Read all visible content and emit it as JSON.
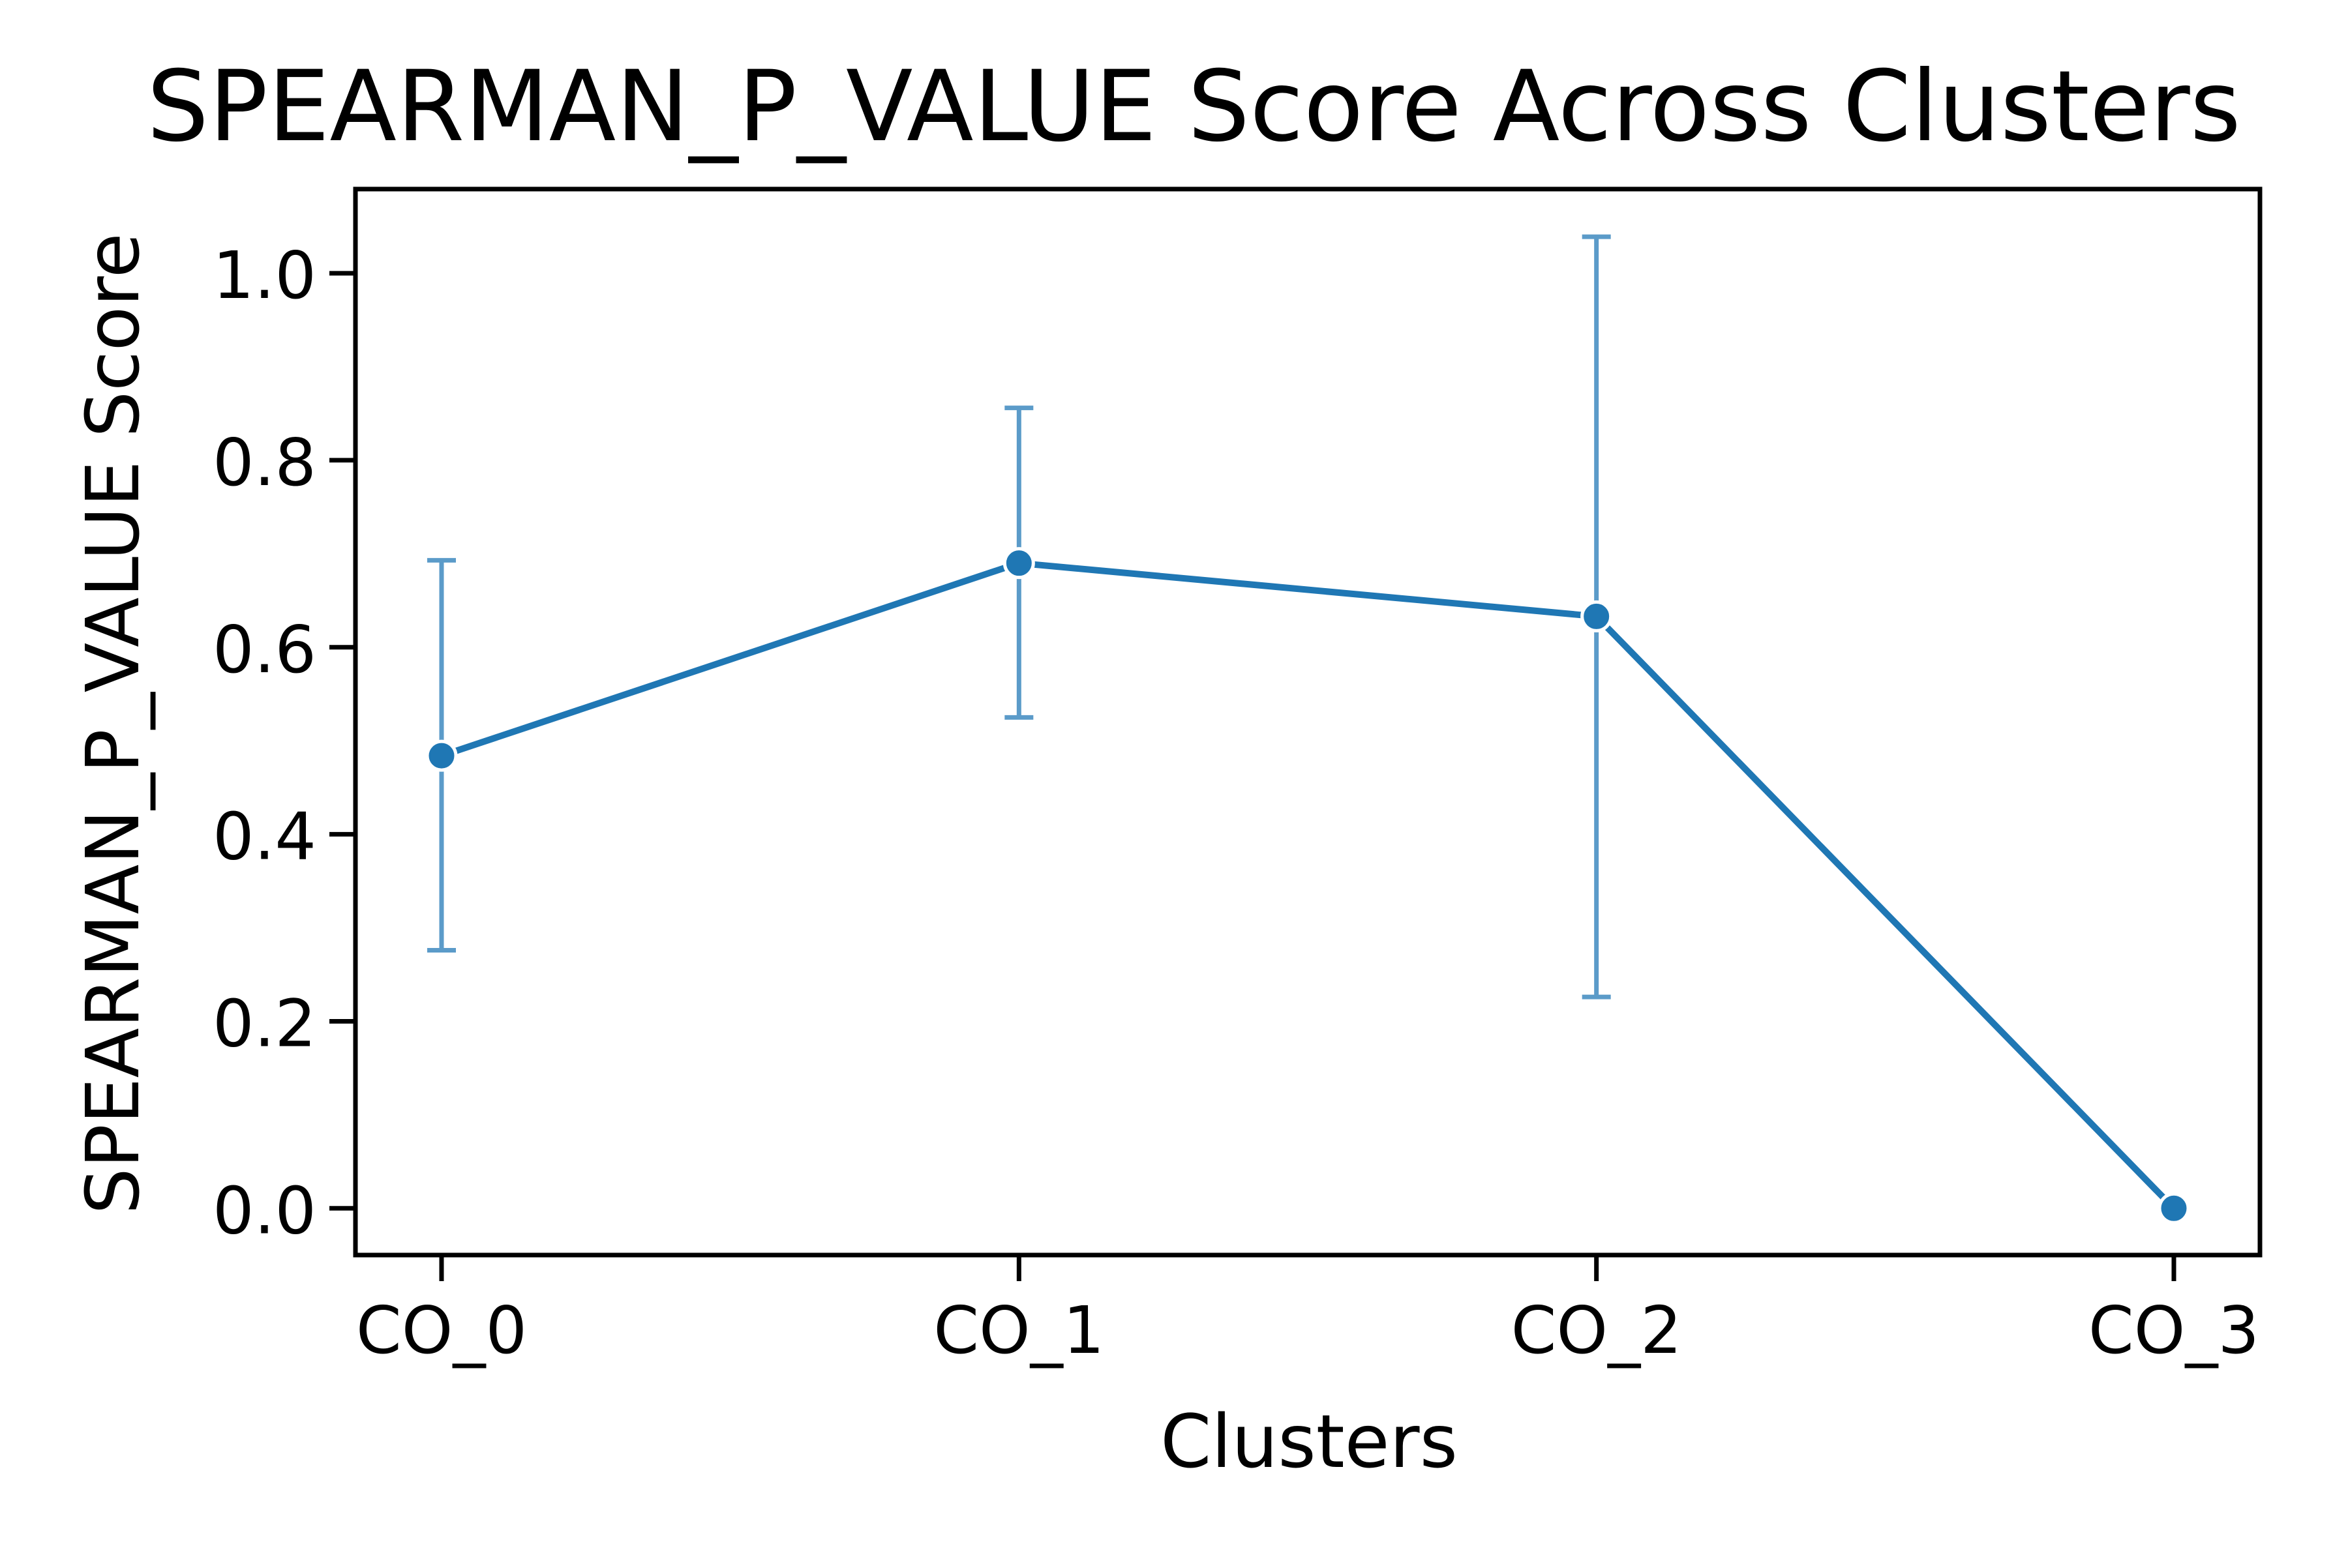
{
  "chart_data": {
    "type": "line",
    "title": "SPEARMAN_P_VALUE Score Across Clusters",
    "xlabel": "Clusters",
    "ylabel": "SPEARMAN_P_VALUE Score",
    "categories": [
      "CO_0",
      "CO_1",
      "CO_2",
      "CO_3"
    ],
    "series": [
      {
        "values": [
          0.484,
          0.69,
          0.633,
          0.0
        ],
        "error_low": [
          0.276,
          0.525,
          0.226,
          0.0
        ],
        "error_high": [
          0.693,
          0.856,
          1.039,
          0.0
        ],
        "color": "#1f77b4",
        "error_color": "#5b9bc9"
      }
    ],
    "ylim": [
      -0.05,
      1.09
    ],
    "yticks": [
      "0.0",
      "0.2",
      "0.4",
      "0.6",
      "0.8",
      "1.0"
    ],
    "grid": false,
    "legend": "none"
  }
}
